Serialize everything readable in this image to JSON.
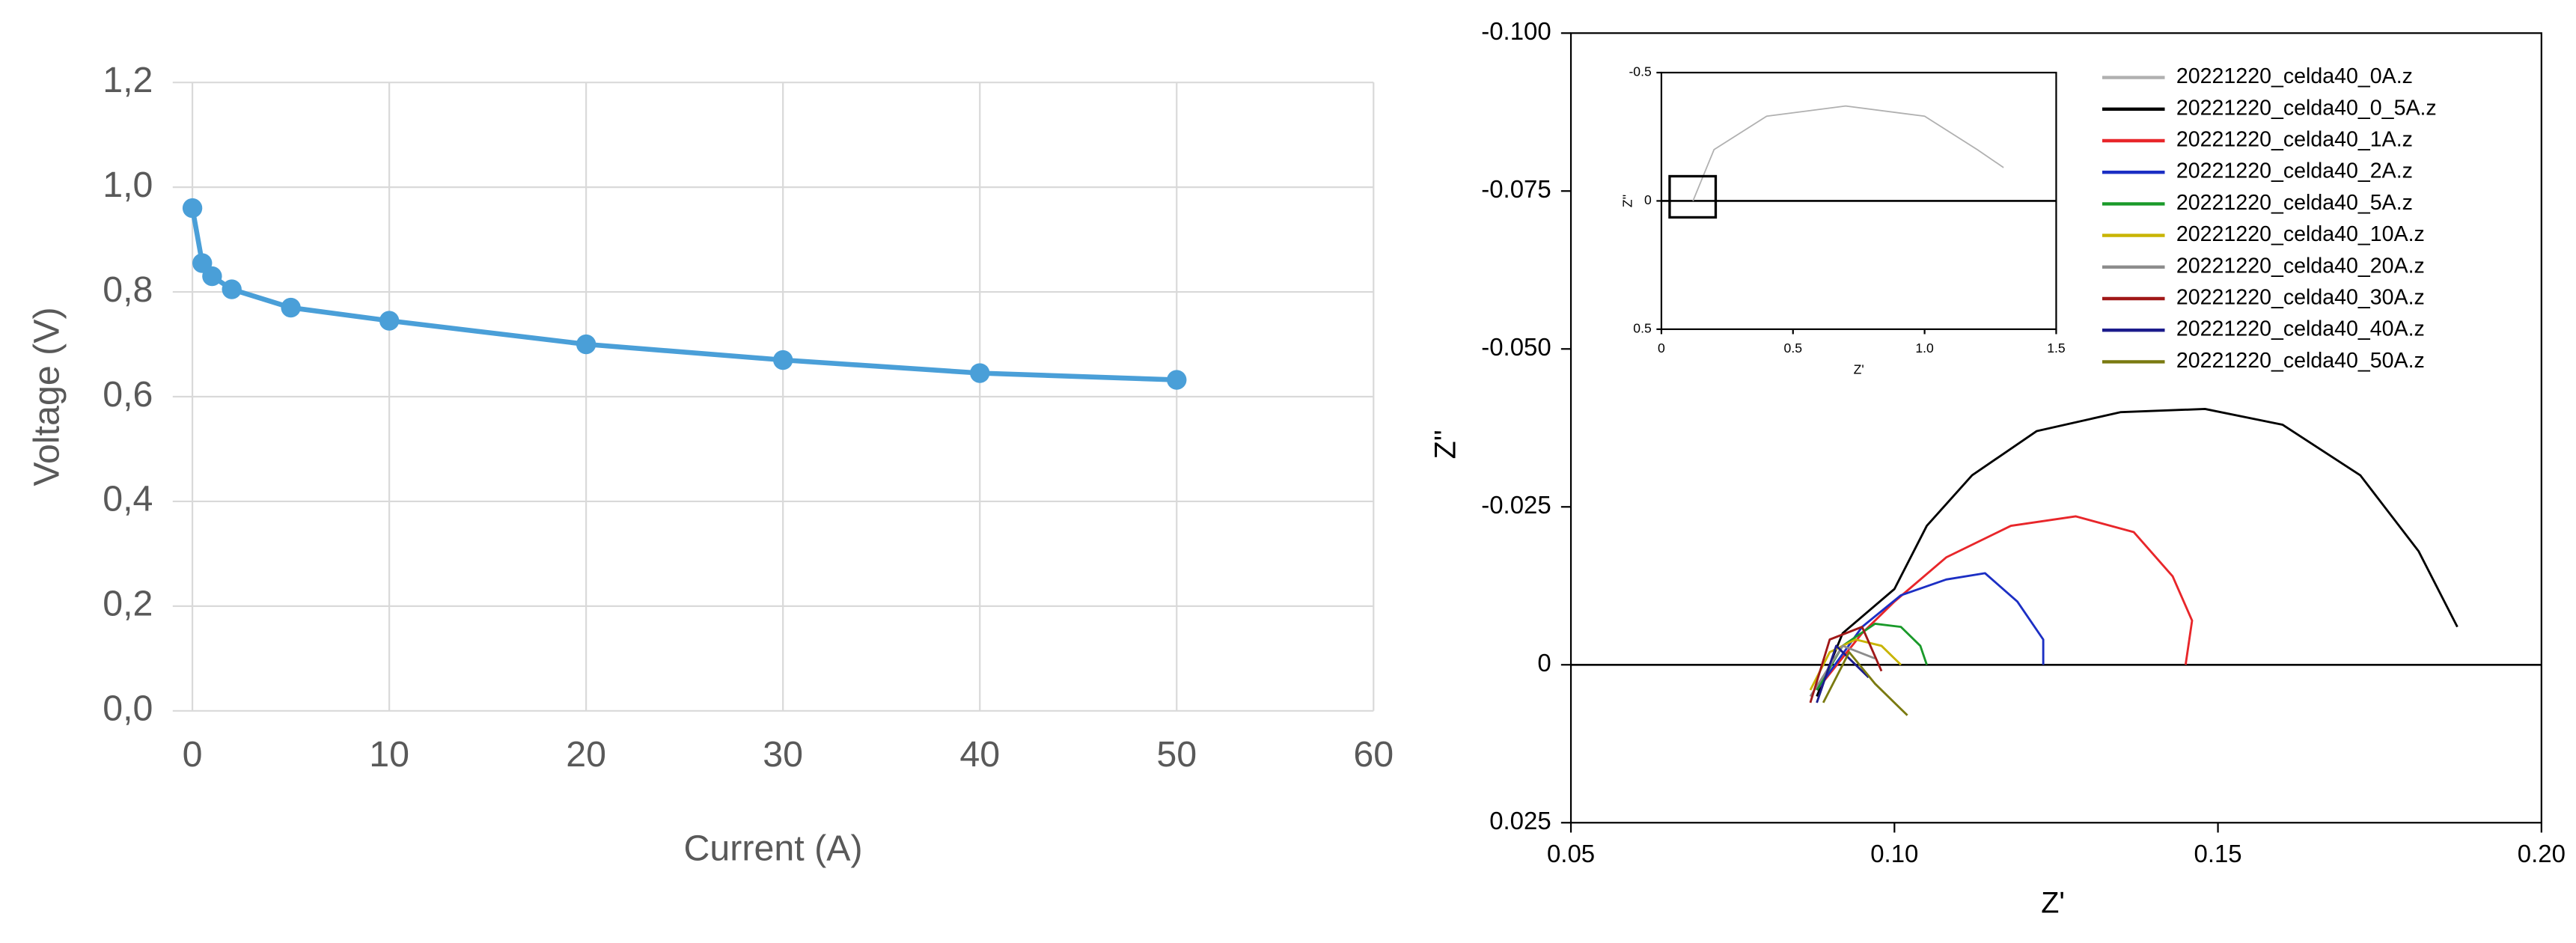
{
  "chart_data": [
    {
      "type": "line",
      "xlabel": "Current (A)",
      "ylabel": "Voltage (V)",
      "color": "#4a9fd8",
      "markers": true,
      "grid": true,
      "x": [
        0,
        0.5,
        1,
        2,
        5,
        10,
        20,
        30,
        40,
        50
      ],
      "values": [
        0.96,
        0.855,
        0.83,
        0.805,
        0.77,
        0.745,
        0.7,
        0.67,
        0.645,
        0.632
      ],
      "xlim": [
        -1,
        60
      ],
      "xticks": [
        0,
        10,
        20,
        30,
        40,
        50,
        60
      ],
      "ylim": [
        0,
        1.2
      ],
      "yticks": [
        {
          "value": 0,
          "label": "0,0"
        },
        {
          "value": 0.2,
          "label": "0,2"
        },
        {
          "value": 0.4,
          "label": "0,4"
        },
        {
          "value": 0.6,
          "label": "0,6"
        },
        {
          "value": 0.8,
          "label": "0,8"
        },
        {
          "value": 1.0,
          "label": "1,0"
        },
        {
          "value": 1.2,
          "label": "1,2"
        }
      ]
    },
    {
      "type": "line",
      "xlabel": "Z'",
      "ylabel": "Z''",
      "y_inverted": true,
      "zero_line": true,
      "xlim": [
        0.05,
        0.2
      ],
      "xticks": [
        0.05,
        {
          "value": 0.1,
          "label": "0.10"
        },
        0.15,
        {
          "value": 0.2,
          "label": "0.20"
        }
      ],
      "ylim": [
        -0.1,
        0.025
      ],
      "yticks": [
        {
          "value": -0.1,
          "label": "-0.100"
        },
        -0.075,
        {
          "value": -0.05,
          "label": "-0.050"
        },
        -0.025,
        0,
        0.025
      ],
      "series": [
        {
          "name": "20221220_celda40_0A.z",
          "color": "#b0b0b0"
        },
        {
          "name": "20221220_celda40_0_5A.z",
          "color": "#000000",
          "x": [
            0.088,
            0.092,
            0.1,
            0.105,
            0.112,
            0.122,
            0.135,
            0.148,
            0.16,
            0.172,
            0.181,
            0.185,
            0.187
          ],
          "values": [
            0.005,
            -0.005,
            -0.012,
            -0.022,
            -0.03,
            -0.037,
            -0.04,
            -0.0405,
            -0.038,
            -0.03,
            -0.018,
            -0.01,
            -0.006
          ]
        },
        {
          "name": "20221220_celda40_1A.z",
          "color": "#e8262a",
          "x": [
            0.088,
            0.095,
            0.1,
            0.108,
            0.118,
            0.128,
            0.137,
            0.143,
            0.146,
            0.145
          ],
          "values": [
            0.004,
            -0.005,
            -0.01,
            -0.017,
            -0.022,
            -0.0235,
            -0.021,
            -0.014,
            -0.007,
            0
          ]
        },
        {
          "name": "20221220_celda40_2A.z",
          "color": "#1c2fc4",
          "x": [
            0.088,
            0.095,
            0.101,
            0.108,
            0.114,
            0.119,
            0.123,
            0.123
          ],
          "values": [
            0.004,
            -0.006,
            -0.011,
            -0.0135,
            -0.0145,
            -0.01,
            -0.004,
            0
          ]
        },
        {
          "name": "20221220_celda40_5A.z",
          "color": "#1a9a2a",
          "x": [
            0.088,
            0.092,
            0.097,
            0.101,
            0.104,
            0.105
          ],
          "values": [
            0.004,
            -0.003,
            -0.0065,
            -0.006,
            -0.003,
            0
          ]
        },
        {
          "name": "20221220_celda40_10A.z",
          "color": "#c8b400",
          "x": [
            0.087,
            0.09,
            0.094,
            0.098,
            0.101
          ],
          "values": [
            0.004,
            -0.002,
            -0.004,
            -0.003,
            0
          ]
        },
        {
          "name": "20221220_celda40_20A.z",
          "color": "#8c8c8c",
          "x": [
            0.087,
            0.092,
            0.097
          ],
          "values": [
            0.005,
            -0.003,
            -0.001
          ]
        },
        {
          "name": "20221220_celda40_30A.z",
          "color": "#a01818",
          "x": [
            0.087,
            0.09,
            0.095,
            0.098
          ],
          "values": [
            0.006,
            -0.004,
            -0.006,
            0.001
          ]
        },
        {
          "name": "20221220_celda40_40A.z",
          "color": "#1c1c8c",
          "x": [
            0.088,
            0.091,
            0.096
          ],
          "values": [
            0.006,
            -0.003,
            0.002
          ]
        },
        {
          "name": "20221220_celda40_50A.z",
          "color": "#7a7a10",
          "x": [
            0.089,
            0.093,
            0.097,
            0.102
          ],
          "values": [
            0.006,
            -0.002,
            0.003,
            0.008
          ]
        }
      ]
    },
    {
      "type": "line",
      "xlabel": "Z'",
      "ylabel": "Z''",
      "y_inverted": true,
      "zero_line": true,
      "xlim": [
        0,
        1.5
      ],
      "xticks": [
        0,
        0.5,
        {
          "value": 1,
          "label": "1.0"
        },
        1.5
      ],
      "ylim": [
        -0.5,
        0.5
      ],
      "yticks": [
        -0.5,
        0,
        0.5
      ],
      "series": [
        {
          "color": "#b0b0b0",
          "x": [
            0.12,
            0.2,
            0.4,
            0.7,
            1.0,
            1.2,
            1.3
          ],
          "values": [
            0,
            -0.2,
            -0.33,
            -0.37,
            -0.33,
            -0.2,
            -0.13
          ]
        }
      ]
    }
  ]
}
